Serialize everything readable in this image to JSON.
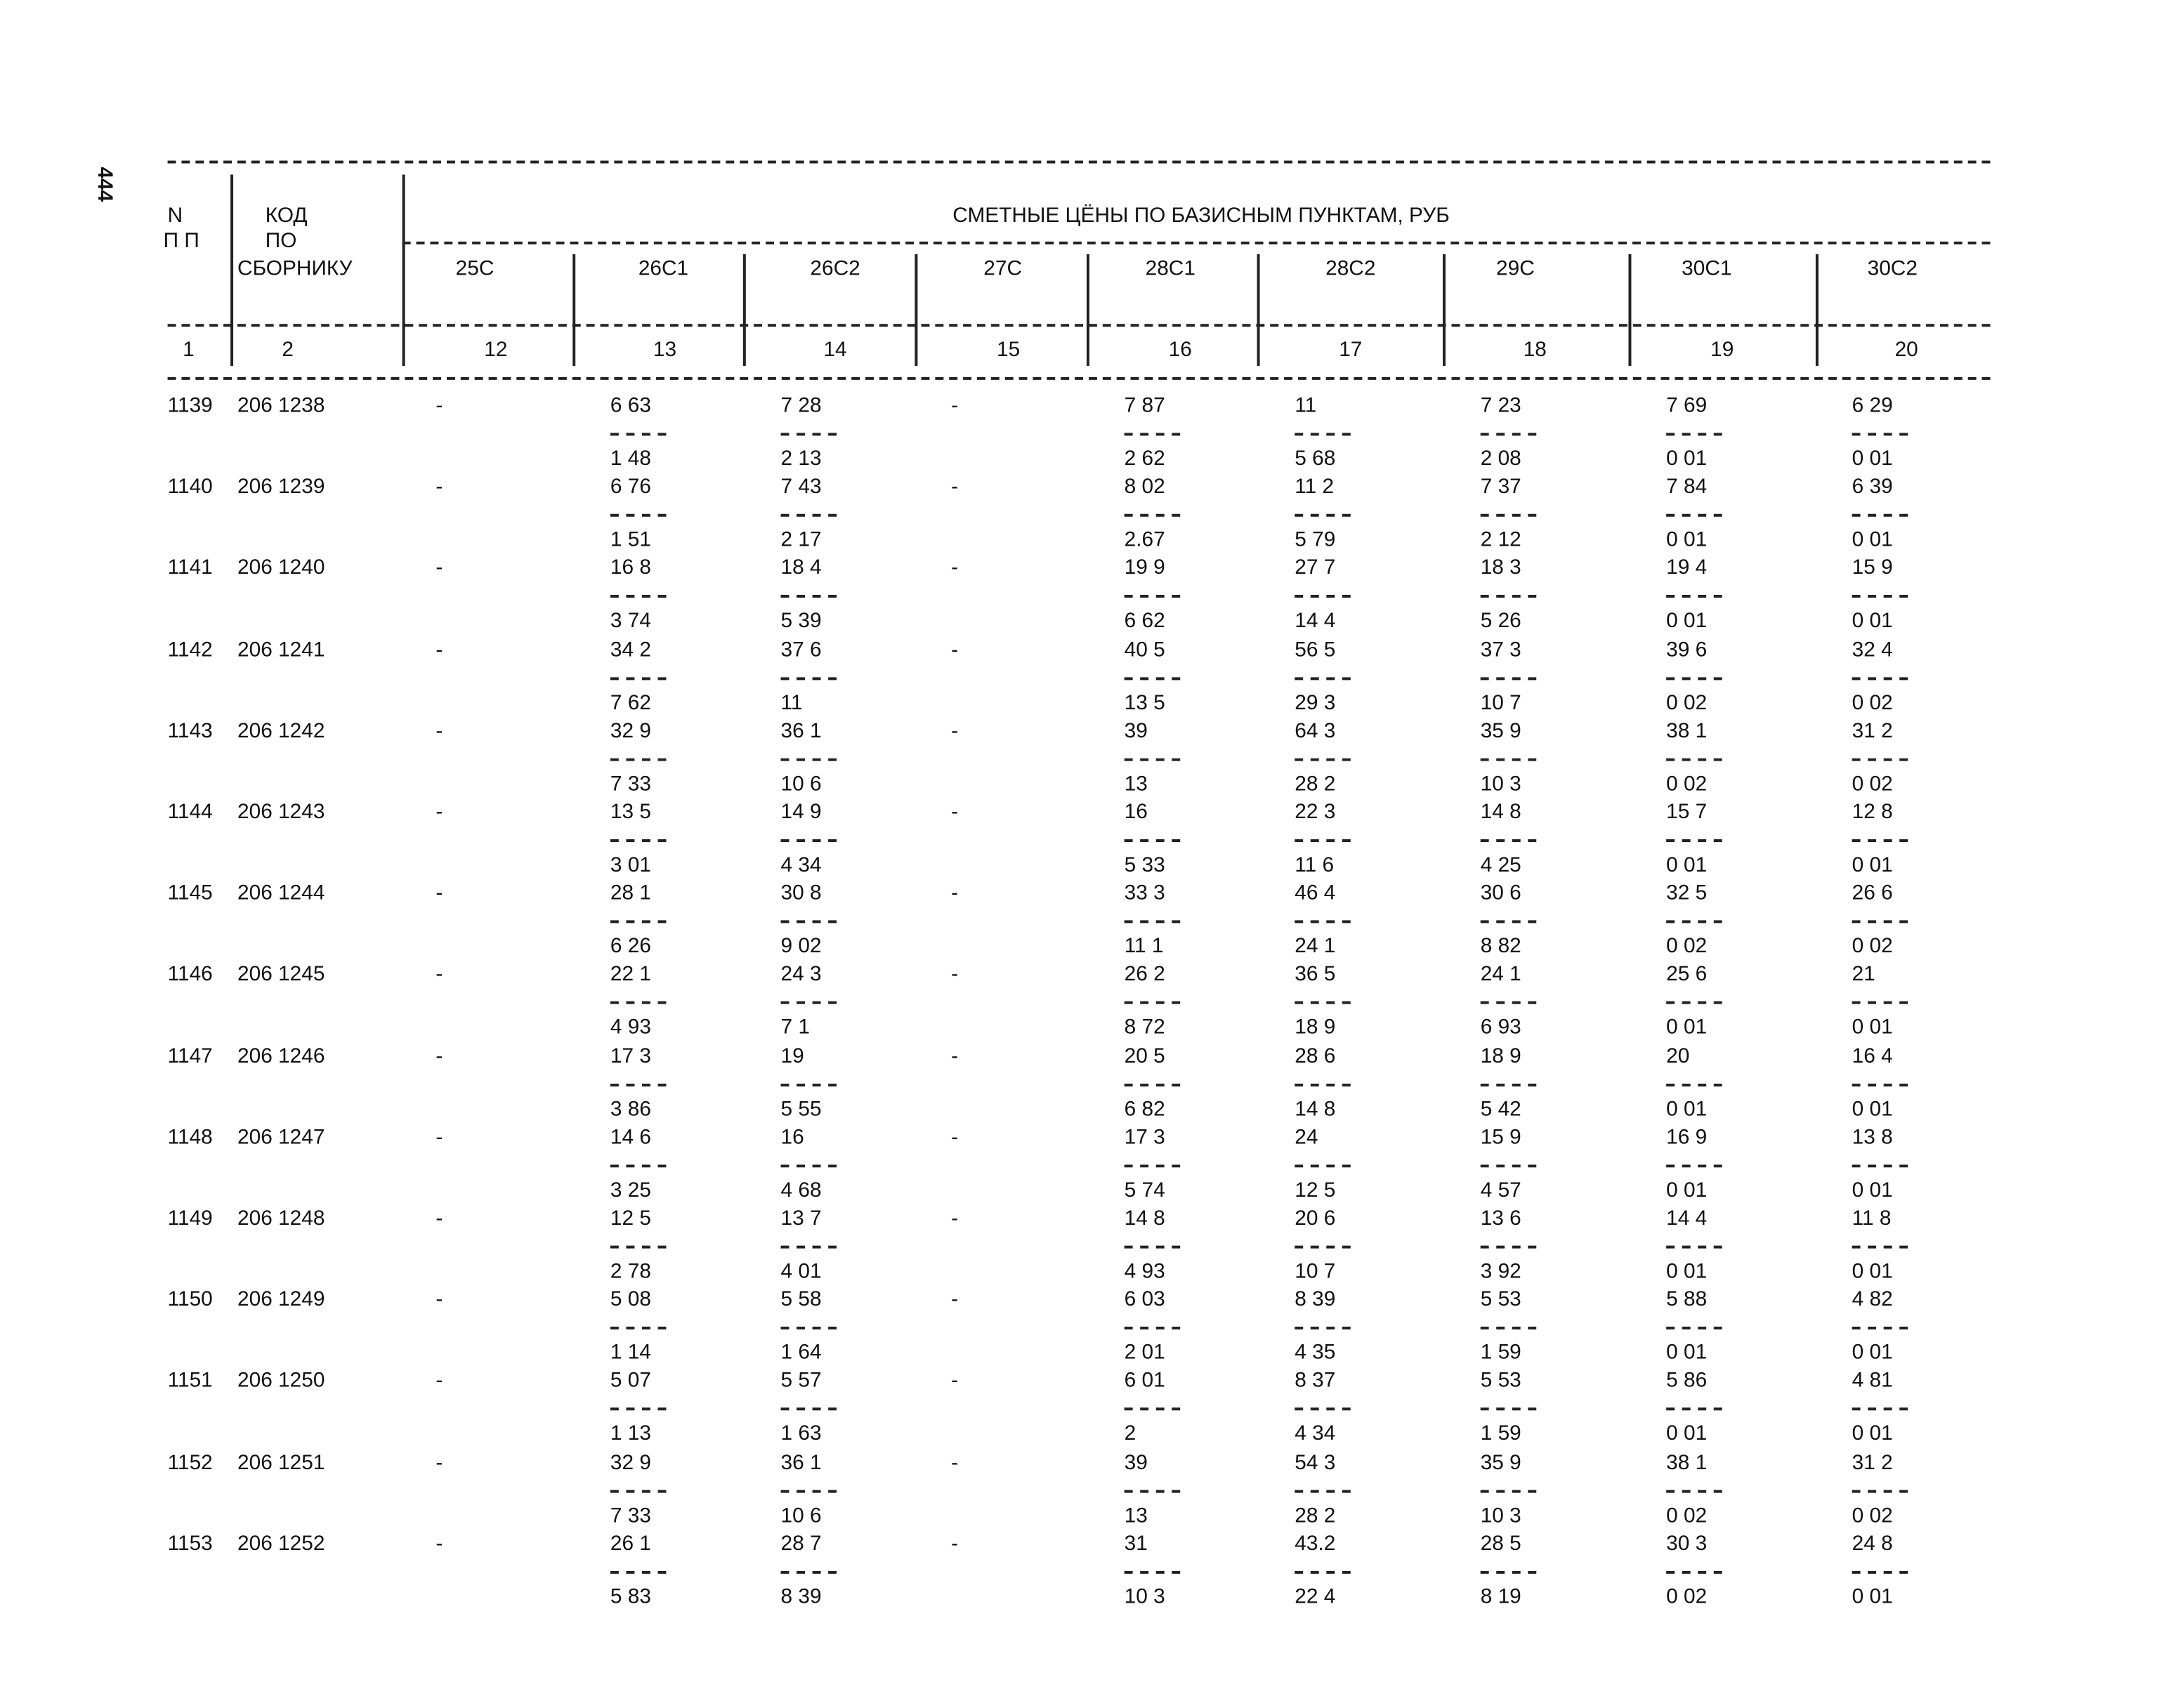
{
  "page_number": "444",
  "header": {
    "n": "N",
    "pp": "П П",
    "code": [
      "КОД",
      "ПО",
      "СБОРНИКУ"
    ],
    "title": "СМЕТНЫЕ ЦЁНЫ ПО БАЗИСНЫМ ПУНКТАМ, РУБ",
    "columns": [
      "25С",
      "26С1",
      "26С2",
      "27С",
      "28С1",
      "28С2",
      "29С",
      "30С1",
      "30С2"
    ],
    "col_numbers": [
      "1",
      "2",
      "12",
      "13",
      "14",
      "15",
      "16",
      "17",
      "18",
      "19",
      "20"
    ]
  },
  "rows": [
    {
      "n": "1139",
      "code": "206 1238",
      "cells": [
        "-",
        [
          "6 63",
          "1 48"
        ],
        [
          "7 28",
          "2 13"
        ],
        "-",
        [
          "7 87",
          "2 62"
        ],
        [
          "11",
          "5 68"
        ],
        [
          "7 23",
          "2 08"
        ],
        [
          "7 69",
          "0 01"
        ],
        [
          "6 29",
          "0 01"
        ]
      ]
    },
    {
      "n": "1140",
      "code": "206 1239",
      "cells": [
        "-",
        [
          "6 76",
          "1 51"
        ],
        [
          "7 43",
          "2 17"
        ],
        "-",
        [
          "8 02",
          "2.67"
        ],
        [
          "11 2",
          "5 79"
        ],
        [
          "7 37",
          "2 12"
        ],
        [
          "7 84",
          "0 01"
        ],
        [
          "6 39",
          "0 01"
        ]
      ]
    },
    {
      "n": "1141",
      "code": "206 1240",
      "cells": [
        "-",
        [
          "16 8",
          "3 74"
        ],
        [
          "18 4",
          "5 39"
        ],
        "-",
        [
          "19 9",
          "6 62"
        ],
        [
          "27 7",
          "14 4"
        ],
        [
          "18 3",
          "5 26"
        ],
        [
          "19 4",
          "0 01"
        ],
        [
          "15 9",
          "0 01"
        ]
      ]
    },
    {
      "n": "1142",
      "code": "206 1241",
      "cells": [
        "-",
        [
          "34 2",
          "7 62"
        ],
        [
          "37 6",
          "11"
        ],
        "-",
        [
          "40 5",
          "13 5"
        ],
        [
          "56 5",
          "29 3"
        ],
        [
          "37 3",
          "10 7"
        ],
        [
          "39 6",
          "0 02"
        ],
        [
          "32 4",
          "0 02"
        ]
      ]
    },
    {
      "n": "1143",
      "code": "206 1242",
      "cells": [
        "-",
        [
          "32 9",
          "7 33"
        ],
        [
          "36 1",
          "10 6"
        ],
        "-",
        [
          "39",
          "13"
        ],
        [
          "64 3",
          "28 2"
        ],
        [
          "35 9",
          "10 3"
        ],
        [
          "38 1",
          "0 02"
        ],
        [
          "31 2",
          "0 02"
        ]
      ]
    },
    {
      "n": "1144",
      "code": "206 1243",
      "cells": [
        "-",
        [
          "13 5",
          "3 01"
        ],
        [
          "14 9",
          "4 34"
        ],
        "-",
        [
          "16",
          "5 33"
        ],
        [
          "22 3",
          "11 6"
        ],
        [
          "14 8",
          "4 25"
        ],
        [
          "15 7",
          "0 01"
        ],
        [
          "12 8",
          "0 01"
        ]
      ]
    },
    {
      "n": "1145",
      "code": "206 1244",
      "cells": [
        "-",
        [
          "28 1",
          "6 26"
        ],
        [
          "30 8",
          "9 02"
        ],
        "-",
        [
          "33 3",
          "11 1"
        ],
        [
          "46 4",
          "24 1"
        ],
        [
          "30 6",
          "8 82"
        ],
        [
          "32 5",
          "0 02"
        ],
        [
          "26 6",
          "0 02"
        ]
      ]
    },
    {
      "n": "1146",
      "code": "206 1245",
      "cells": [
        "-",
        [
          "22 1",
          "4 93"
        ],
        [
          "24 3",
          "7 1"
        ],
        "-",
        [
          "26 2",
          "8 72"
        ],
        [
          "36 5",
          "18 9"
        ],
        [
          "24 1",
          "6 93"
        ],
        [
          "25 6",
          "0 01"
        ],
        [
          "21",
          "0 01"
        ]
      ]
    },
    {
      "n": "1147",
      "code": "206 1246",
      "cells": [
        "-",
        [
          "17 3",
          "3 86"
        ],
        [
          "19",
          "5 55"
        ],
        "-",
        [
          "20 5",
          "6 82"
        ],
        [
          "28 6",
          "14 8"
        ],
        [
          "18 9",
          "5 42"
        ],
        [
          "20",
          "0 01"
        ],
        [
          "16 4",
          "0 01"
        ]
      ]
    },
    {
      "n": "1148",
      "code": "206 1247",
      "cells": [
        "-",
        [
          "14 6",
          "3 25"
        ],
        [
          "16",
          "4 68"
        ],
        "-",
        [
          "17 3",
          "5 74"
        ],
        [
          "24",
          "12 5"
        ],
        [
          "15 9",
          "4 57"
        ],
        [
          "16 9",
          "0 01"
        ],
        [
          "13 8",
          "0 01"
        ]
      ]
    },
    {
      "n": "1149",
      "code": "206 1248",
      "cells": [
        "-",
        [
          "12 5",
          "2 78"
        ],
        [
          "13 7",
          "4 01"
        ],
        "-",
        [
          "14 8",
          "4 93"
        ],
        [
          "20 6",
          "10 7"
        ],
        [
          "13 6",
          "3 92"
        ],
        [
          "14 4",
          "0 01"
        ],
        [
          "11 8",
          "0 01"
        ]
      ]
    },
    {
      "n": "1150",
      "code": "206 1249",
      "cells": [
        "-",
        [
          "5 08",
          "1 14"
        ],
        [
          "5 58",
          "1 64"
        ],
        "-",
        [
          "6 03",
          "2 01"
        ],
        [
          "8 39",
          "4 35"
        ],
        [
          "5 53",
          "1 59"
        ],
        [
          "5 88",
          "0 01"
        ],
        [
          "4 82",
          "0 01"
        ]
      ]
    },
    {
      "n": "1151",
      "code": "206 1250",
      "cells": [
        "-",
        [
          "5 07",
          "1 13"
        ],
        [
          "5 57",
          "1 63"
        ],
        "-",
        [
          "6 01",
          "2"
        ],
        [
          "8 37",
          "4 34"
        ],
        [
          "5 53",
          "1 59"
        ],
        [
          "5 86",
          "0 01"
        ],
        [
          "4 81",
          "0 01"
        ]
      ]
    },
    {
      "n": "1152",
      "code": "206 1251",
      "cells": [
        "-",
        [
          "32 9",
          "7 33"
        ],
        [
          "36 1",
          "10 6"
        ],
        "-",
        [
          "39",
          "13"
        ],
        [
          "54 3",
          "28 2"
        ],
        [
          "35 9",
          "10 3"
        ],
        [
          "38 1",
          "0 02"
        ],
        [
          "31 2",
          "0 02"
        ]
      ]
    },
    {
      "n": "1153",
      "code": "206 1252",
      "cells": [
        "-",
        [
          "26 1",
          "5 83"
        ],
        [
          "28 7",
          "8 39"
        ],
        "-",
        [
          "31",
          "10 3"
        ],
        [
          "43.2",
          "22 4"
        ],
        [
          "28 5",
          "8 19"
        ],
        [
          "30 3",
          "0 02"
        ],
        [
          "24 8",
          "0 01"
        ]
      ]
    }
  ]
}
